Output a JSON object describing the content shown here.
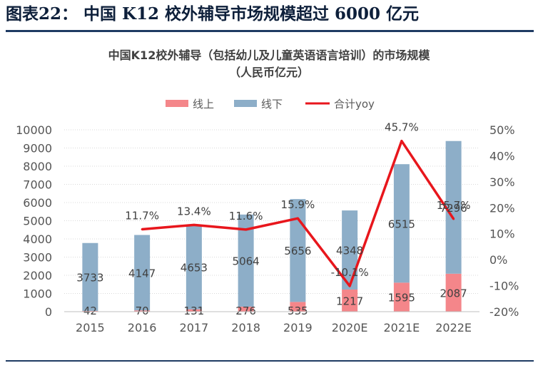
{
  "header": {
    "title": "图表22： 中国 K12 校外辅导市场规模超过 6000 亿元"
  },
  "chart_data": {
    "type": "bar",
    "title": "中国K12校外辅导（包括幼儿及儿童英语语言培训）的市场规模",
    "subtitle": "（人民币亿元）",
    "categories": [
      "2015",
      "2016",
      "2017",
      "2018",
      "2019",
      "2020E",
      "2021E",
      "2022E"
    ],
    "stacked": true,
    "series": [
      {
        "name": "线上",
        "type": "bar",
        "axis": "left",
        "color": "#f4868a",
        "values": [
          42,
          70,
          131,
          276,
          535,
          1217,
          1595,
          2087
        ]
      },
      {
        "name": "线下",
        "type": "bar",
        "axis": "left",
        "color": "#8daec8",
        "values": [
          3733,
          4147,
          4653,
          5064,
          5656,
          4348,
          6515,
          7296
        ]
      },
      {
        "name": "合计yoy",
        "type": "line",
        "axis": "right",
        "color": "#e8161c",
        "values": [
          null,
          11.7,
          13.4,
          11.6,
          15.9,
          -10.1,
          45.7,
          15.7
        ],
        "labels": [
          "",
          "11.7%",
          "13.4%",
          "11.6%",
          "15.9%",
          "-10.1%",
          "45.7%",
          "15.7%"
        ]
      }
    ],
    "y_left": {
      "min": 0,
      "max": 10000,
      "step": 1000
    },
    "y_right": {
      "min": -20,
      "max": 50,
      "step": 10,
      "unit": "%"
    },
    "legend_position": "top-center",
    "grid": "horizontal"
  }
}
